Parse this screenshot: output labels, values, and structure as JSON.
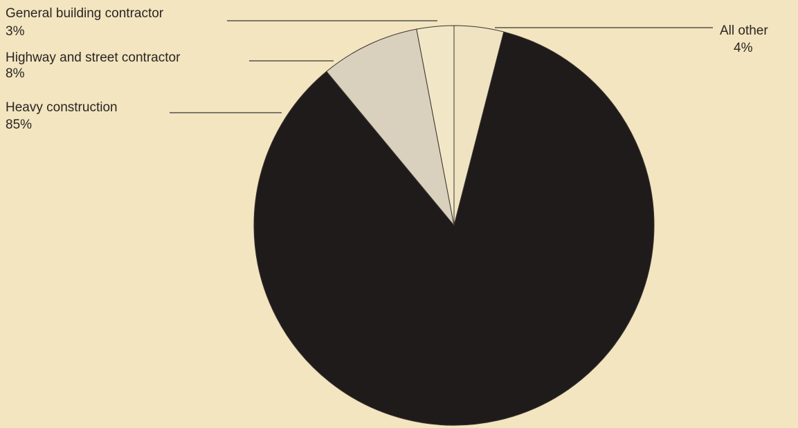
{
  "chart_data": {
    "type": "pie",
    "categories": [
      "All other",
      "Heavy construction",
      "Highway and street contractor",
      "General building contractor"
    ],
    "values": [
      4,
      85,
      8,
      3
    ],
    "value_labels": [
      "4%",
      "85%",
      "8%",
      "3%"
    ],
    "colors": [
      "#efe3c2",
      "#1f1b1a",
      "#d9d0bd",
      "#f1e6c6"
    ]
  }
}
